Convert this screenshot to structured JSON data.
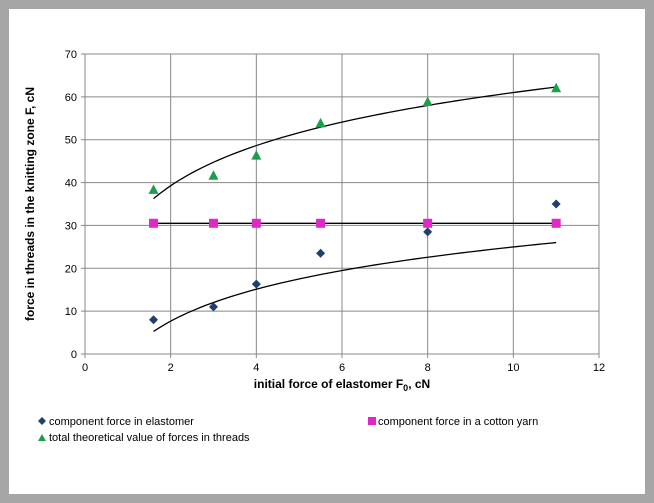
{
  "chart_data": {
    "type": "scatter",
    "xlabel": "initial force of elastomer",
    "xlabel_symbol": "F",
    "xlabel_subscript": "0",
    "xlabel_unit": ", cN",
    "ylabel": "force in threads in the knitting zone F, cN",
    "xlim": [
      0,
      12
    ],
    "ylim": [
      0,
      70
    ],
    "x_ticks": [
      "0",
      "2",
      "4",
      "6",
      "8",
      "10",
      "12"
    ],
    "y_ticks": [
      "0",
      "10",
      "20",
      "30",
      "40",
      "50",
      "60",
      "70"
    ],
    "grid": true,
    "legend_position": "bottom",
    "series": [
      {
        "name": "component force in elastomer",
        "marker": "diamond",
        "color": "#1f3f6e",
        "x": [
          1.6,
          3,
          4,
          5.5,
          8,
          11
        ],
        "y": [
          8,
          11,
          16.3,
          23.5,
          28.5,
          35
        ],
        "trendline": {
          "kind": "log",
          "a": 10.76,
          "b": 0.2,
          "x_range": [
            1.6,
            11
          ]
        }
      },
      {
        "name": "component force in a cotton yarn",
        "marker": "square",
        "color": "#e028c8",
        "x": [
          1.6,
          3,
          4,
          5.5,
          8,
          11
        ],
        "y": [
          30.5,
          30.5,
          30.5,
          30.5,
          30.5,
          30.5
        ],
        "trendline": {
          "kind": "linear",
          "value": 30.5,
          "x_range": [
            1.6,
            11
          ]
        }
      },
      {
        "name": "total theoretical value of forces in threads",
        "marker": "triangle",
        "color": "#1e9e4a",
        "x": [
          1.6,
          3,
          4,
          5.5,
          8,
          11
        ],
        "y": [
          38.3,
          41.6,
          46.3,
          53.8,
          58.8,
          62
        ],
        "trendline": {
          "kind": "log",
          "a": 13.51,
          "b": 29.9,
          "x_range": [
            1.6,
            11
          ]
        }
      }
    ]
  }
}
